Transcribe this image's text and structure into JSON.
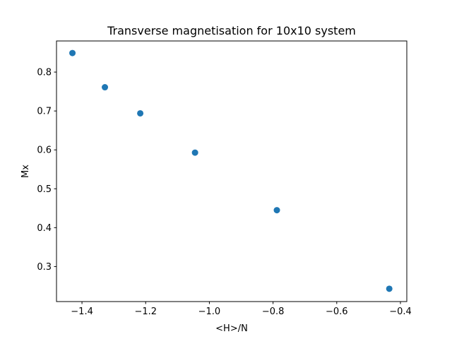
{
  "chart_data": {
    "type": "scatter",
    "title": "Transverse magnetisation for 10x10 system",
    "xlabel": "<H>/N",
    "ylabel": "Mx",
    "xlim": [
      -1.48,
      -0.38
    ],
    "ylim": [
      0.21,
      0.88
    ],
    "xticks": [
      -1.4,
      -1.2,
      -1.0,
      -0.8,
      -0.6,
      -0.4
    ],
    "xtick_labels": [
      "−1.4",
      "−1.2",
      "−1.0",
      "−0.8",
      "−0.6",
      "−0.4"
    ],
    "yticks": [
      0.3,
      0.4,
      0.5,
      0.6,
      0.7,
      0.8
    ],
    "ytick_labels": [
      "0.3",
      "0.4",
      "0.5",
      "0.6",
      "0.7",
      "0.8"
    ],
    "grid": false,
    "marker_color": "#1f77b4",
    "points": [
      {
        "x": -1.43,
        "y": 0.849
      },
      {
        "x": -1.328,
        "y": 0.761
      },
      {
        "x": -1.217,
        "y": 0.694
      },
      {
        "x": -1.045,
        "y": 0.593
      },
      {
        "x": -0.788,
        "y": 0.445
      },
      {
        "x": -0.435,
        "y": 0.243
      }
    ]
  }
}
